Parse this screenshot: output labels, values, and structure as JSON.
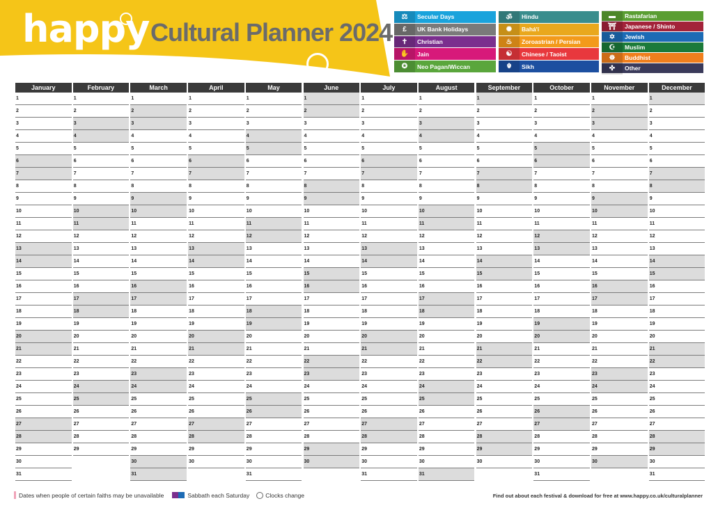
{
  "brand": {
    "logo": "happy",
    "title": "Cultural Planner 2024"
  },
  "colors": {
    "yellow": "#f5c518"
  },
  "legend": [
    {
      "label": "Secular Days",
      "color": "#1aa3dc",
      "icon": "⚖"
    },
    {
      "label": "UK Bank Holidays",
      "color": "#7a7a7a",
      "icon": "£"
    },
    {
      "label": "Christian",
      "color": "#7b2f8e",
      "icon": "✝"
    },
    {
      "label": "Jain",
      "color": "#d7197a",
      "icon": "✋"
    },
    {
      "label": "Neo Pagan/Wiccan",
      "color": "#5aa63c",
      "icon": "✪"
    },
    {
      "label": "Hindu",
      "color": "#3a8d8d",
      "icon": "ॐ"
    },
    {
      "label": "Bahá'í",
      "color": "#e9a81d",
      "icon": "✺"
    },
    {
      "label": "Zoroastrian / Persian",
      "color": "#f39a1b",
      "icon": "♨"
    },
    {
      "label": "Chinese / Taoist",
      "color": "#e8383d",
      "icon": "☯"
    },
    {
      "label": "Sikh",
      "color": "#1c4fa0",
      "icon": "☬"
    },
    {
      "label": "Rastafarian",
      "color": "#5a9e32",
      "icon": "▬"
    },
    {
      "label": "Japanese / Shinto",
      "color": "#a3233a",
      "icon": "⛩"
    },
    {
      "label": "Jewish",
      "color": "#1c6bb5",
      "icon": "✡"
    },
    {
      "label": "Muslim",
      "color": "#1b7a3a",
      "icon": "☪"
    },
    {
      "label": "Buddhist",
      "color": "#f07f1d",
      "icon": "☸"
    },
    {
      "label": "Other",
      "color": "#3a3a5a",
      "icon": "✜"
    }
  ],
  "months": [
    "January",
    "February",
    "March",
    "April",
    "May",
    "June",
    "July",
    "August",
    "September",
    "October",
    "November",
    "December"
  ],
  "month_days": [
    31,
    29,
    31,
    30,
    31,
    30,
    31,
    31,
    30,
    31,
    30,
    31
  ],
  "footer": {
    "note1": "Dates when people of certain faiths may be unavailable",
    "note2": "Sabbath each Saturday",
    "note3": "Clocks change",
    "link": "Find out about each festival & download for free at www.happy.co.uk/culturalplanner"
  }
}
